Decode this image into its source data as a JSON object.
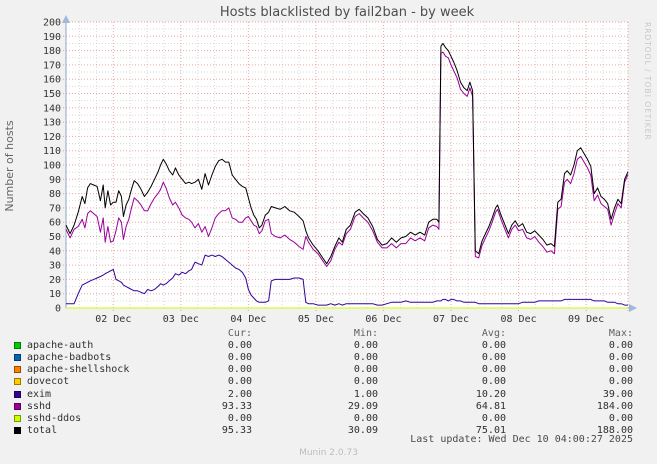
{
  "title": "Hosts blacklisted by fail2ban - by week",
  "ylabel": "Number of hosts",
  "watermark": "RRDTOOL / TOBI OETIKER",
  "footer": "Munin 2.0.73",
  "last_update": "Last update: Wed Dec 10 04:00:27 2025",
  "colors": {
    "background": "#F1F1F1",
    "canvas": "#FFFFFF",
    "major_grid": "#E06A6A",
    "minor_grid": "#BBBBBB",
    "axis": "#8FA8C8",
    "arrow": "#9FB8DC",
    "title_text": "#4D4D4D"
  },
  "legend": {
    "headers": [
      "Cur:",
      "Min:",
      "Avg:",
      "Max:"
    ],
    "rows": [
      {
        "label": "apache-auth",
        "color": "#00CC00",
        "cur": "0.00",
        "min": "0.00",
        "avg": "0.00",
        "max": "0.00"
      },
      {
        "label": "apache-badbots",
        "color": "#0066B3",
        "cur": "0.00",
        "min": "0.00",
        "avg": "0.00",
        "max": "0.00"
      },
      {
        "label": "apache-shellshock",
        "color": "#FF8000",
        "cur": "0.00",
        "min": "0.00",
        "avg": "0.00",
        "max": "0.00"
      },
      {
        "label": "dovecot",
        "color": "#FFCC00",
        "cur": "0.00",
        "min": "0.00",
        "avg": "0.00",
        "max": "0.00"
      },
      {
        "label": "exim",
        "color": "#330099",
        "cur": "2.00",
        "min": "1.00",
        "avg": "10.20",
        "max": "39.00"
      },
      {
        "label": "sshd",
        "color": "#990099",
        "cur": "93.33",
        "min": "29.09",
        "avg": "64.81",
        "max": "184.00"
      },
      {
        "label": "sshd-ddos",
        "color": "#CCFF00",
        "cur": "0.00",
        "min": "0.00",
        "avg": "0.00",
        "max": "0.00"
      },
      {
        "label": "total",
        "color": "#000000",
        "cur": "95.33",
        "min": "30.09",
        "avg": "75.01",
        "max": "188.00"
      }
    ]
  },
  "chart_data": {
    "type": "line",
    "title": "Hosts blacklisted by fail2ban - by week",
    "xlabel": "",
    "ylabel": "Number of hosts",
    "ylim": [
      0,
      200
    ],
    "grid": true,
    "legend_position": "below",
    "y_ticks": [
      0,
      10,
      20,
      30,
      40,
      50,
      60,
      70,
      80,
      90,
      100,
      110,
      120,
      130,
      140,
      150,
      160,
      170,
      180,
      190,
      200
    ],
    "x_ticks": [
      {
        "day": 2,
        "label": "02 Dec"
      },
      {
        "day": 3,
        "label": "03 Dec"
      },
      {
        "day": 4,
        "label": "04 Dec"
      },
      {
        "day": 5,
        "label": "05 Dec"
      },
      {
        "day": 6,
        "label": "06 Dec"
      },
      {
        "day": 7,
        "label": "07 Dec"
      },
      {
        "day": 8,
        "label": "08 Dec"
      },
      {
        "day": 9,
        "label": "09 Dec"
      }
    ],
    "x_range_days": [
      1.3,
      9.62
    ],
    "x_days": [
      1.3,
      1.36,
      1.42,
      1.48,
      1.54,
      1.58,
      1.62,
      1.66,
      1.71,
      1.76,
      1.81,
      1.85,
      1.88,
      1.92,
      1.96,
      2.0,
      2.04,
      2.08,
      2.12,
      2.15,
      2.19,
      2.23,
      2.27,
      2.31,
      2.36,
      2.41,
      2.46,
      2.51,
      2.56,
      2.61,
      2.66,
      2.7,
      2.74,
      2.78,
      2.83,
      2.88,
      2.92,
      2.97,
      3.02,
      3.07,
      3.12,
      3.16,
      3.21,
      3.26,
      3.31,
      3.36,
      3.41,
      3.46,
      3.51,
      3.56,
      3.61,
      3.66,
      3.71,
      3.76,
      3.81,
      3.86,
      3.91,
      3.96,
      4.0,
      4.04,
      4.08,
      4.12,
      4.16,
      4.2,
      4.25,
      4.3,
      4.34,
      4.4,
      4.47,
      4.54,
      4.61,
      4.68,
      4.75,
      4.81,
      4.85,
      4.89,
      4.96,
      5.03,
      5.1,
      5.16,
      5.22,
      5.28,
      5.34,
      5.39,
      5.45,
      5.51,
      5.58,
      5.64,
      5.7,
      5.77,
      5.84,
      5.91,
      5.98,
      6.05,
      6.12,
      6.19,
      6.26,
      6.33,
      6.4,
      6.47,
      6.54,
      6.61,
      6.67,
      6.73,
      6.79,
      6.82,
      6.85,
      6.88,
      6.92,
      6.96,
      7.0,
      7.04,
      7.09,
      7.14,
      7.19,
      7.24,
      7.28,
      7.32,
      7.36,
      7.41,
      7.46,
      7.51,
      7.56,
      7.61,
      7.66,
      7.69,
      7.74,
      7.79,
      7.85,
      7.9,
      7.95,
      8.0,
      8.06,
      8.12,
      8.18,
      8.24,
      8.3,
      8.36,
      8.42,
      8.48,
      8.53,
      8.58,
      8.63,
      8.68,
      8.72,
      8.77,
      8.82,
      8.87,
      8.92,
      8.97,
      9.02,
      9.07,
      9.12,
      9.17,
      9.22,
      9.27,
      9.32,
      9.37,
      9.42,
      9.47,
      9.52,
      9.57,
      9.62
    ],
    "series": [
      {
        "name": "apache-auth",
        "color": "#00CC00",
        "flat": 0
      },
      {
        "name": "apache-badbots",
        "color": "#0066B3",
        "flat": 0
      },
      {
        "name": "apache-shellshock",
        "color": "#FF8000",
        "flat": 0
      },
      {
        "name": "dovecot",
        "color": "#FFCC00",
        "flat": 0
      },
      {
        "name": "exim",
        "color": "#330099",
        "values": [
          3,
          3,
          3,
          10,
          16,
          17,
          18,
          19,
          20,
          21,
          22,
          23,
          24,
          25,
          26,
          27,
          20,
          19,
          18,
          16,
          15,
          14,
          13,
          12,
          12,
          11,
          10,
          13,
          12,
          13,
          15,
          17,
          16,
          17,
          19,
          21,
          24,
          23,
          25,
          24,
          26,
          27,
          32,
          31,
          30,
          37,
          36,
          37,
          36,
          37,
          36,
          34,
          32,
          30,
          28,
          27,
          25,
          21,
          13,
          9,
          7,
          5,
          4,
          4,
          4,
          5,
          19,
          20,
          20,
          20,
          20,
          21,
          21,
          20,
          4,
          3,
          3,
          2,
          2,
          2,
          3,
          2,
          3,
          2,
          3,
          3,
          3,
          3,
          3,
          3,
          3,
          2,
          2,
          3,
          4,
          4,
          4,
          5,
          4,
          4,
          4,
          4,
          4,
          4,
          5,
          5,
          5,
          6,
          6,
          5,
          6,
          6,
          5,
          5,
          4,
          4,
          4,
          4,
          4,
          3,
          3,
          3,
          3,
          3,
          3,
          3,
          3,
          3,
          3,
          3,
          3,
          3,
          4,
          4,
          4,
          4,
          5,
          5,
          5,
          5,
          5,
          5,
          5,
          6,
          6,
          6,
          6,
          6,
          6,
          6,
          6,
          6,
          5,
          5,
          5,
          5,
          4,
          4,
          4,
          3,
          3,
          2,
          2
        ]
      },
      {
        "name": "sshd",
        "color": "#990099",
        "values": [
          55,
          49,
          55,
          57,
          62,
          56,
          66,
          68,
          66,
          64,
          53,
          63,
          46,
          57,
          46,
          47,
          54,
          63,
          60,
          48,
          57,
          62,
          70,
          77,
          75,
          72,
          68,
          68,
          73,
          77,
          80,
          83,
          88,
          84,
          77,
          72,
          74,
          70,
          65,
          63,
          62,
          60,
          56,
          59,
          53,
          57,
          50,
          56,
          63,
          66,
          68,
          68,
          70,
          63,
          62,
          60,
          60,
          63,
          64,
          61,
          58,
          57,
          52,
          54,
          61,
          62,
          52,
          50,
          49,
          51,
          48,
          46,
          43,
          41,
          50,
          46,
          41,
          38,
          33,
          29,
          33,
          41,
          46,
          44,
          52,
          55,
          64,
          66,
          63,
          60,
          54,
          46,
          42,
          42,
          45,
          42,
          45,
          45,
          49,
          47,
          49,
          47,
          56,
          58,
          57,
          55,
          178,
          179,
          176,
          175,
          170,
          166,
          161,
          153,
          150,
          148,
          154,
          148,
          36,
          35,
          44,
          49,
          54,
          60,
          67,
          69,
          62,
          56,
          49,
          55,
          58,
          54,
          55,
          49,
          48,
          50,
          46,
          43,
          39,
          40,
          38,
          69,
          71,
          88,
          90,
          87,
          94,
          104,
          106,
          102,
          98,
          93,
          75,
          79,
          73,
          71,
          69,
          58,
          66,
          73,
          70,
          88,
          93.33
        ]
      },
      {
        "name": "sshd-ddos",
        "color": "#CCFF00",
        "flat": 0
      },
      {
        "name": "total",
        "color": "#000000",
        "values": [
          58,
          52,
          58,
          67,
          78,
          73,
          84,
          87,
          86,
          85,
          75,
          86,
          70,
          82,
          72,
          74,
          74,
          82,
          78,
          64,
          72,
          76,
          83,
          89,
          87,
          83,
          78,
          81,
          85,
          90,
          95,
          100,
          104,
          101,
          96,
          93,
          98,
          93,
          90,
          87,
          88,
          87,
          88,
          90,
          83,
          94,
          86,
          93,
          99,
          103,
          104,
          102,
          102,
          93,
          90,
          87,
          85,
          84,
          77,
          70,
          65,
          62,
          56,
          58,
          65,
          67,
          71,
          70,
          69,
          71,
          68,
          67,
          64,
          61,
          54,
          49,
          44,
          40,
          35,
          31,
          36,
          43,
          49,
          46,
          55,
          58,
          67,
          69,
          66,
          63,
          57,
          48,
          44,
          45,
          49,
          46,
          49,
          50,
          53,
          51,
          53,
          51,
          60,
          62,
          62,
          60,
          183,
          185,
          182,
          180,
          176,
          172,
          166,
          158,
          154,
          152,
          158,
          152,
          40,
          38,
          47,
          52,
          57,
          63,
          70,
          72,
          65,
          59,
          52,
          58,
          61,
          57,
          59,
          53,
          52,
          54,
          51,
          48,
          44,
          45,
          43,
          74,
          76,
          94,
          96,
          93,
          100,
          110,
          112,
          108,
          104,
          99,
          80,
          84,
          78,
          76,
          73,
          62,
          70,
          76,
          73,
          90,
          95.33
        ]
      }
    ]
  }
}
